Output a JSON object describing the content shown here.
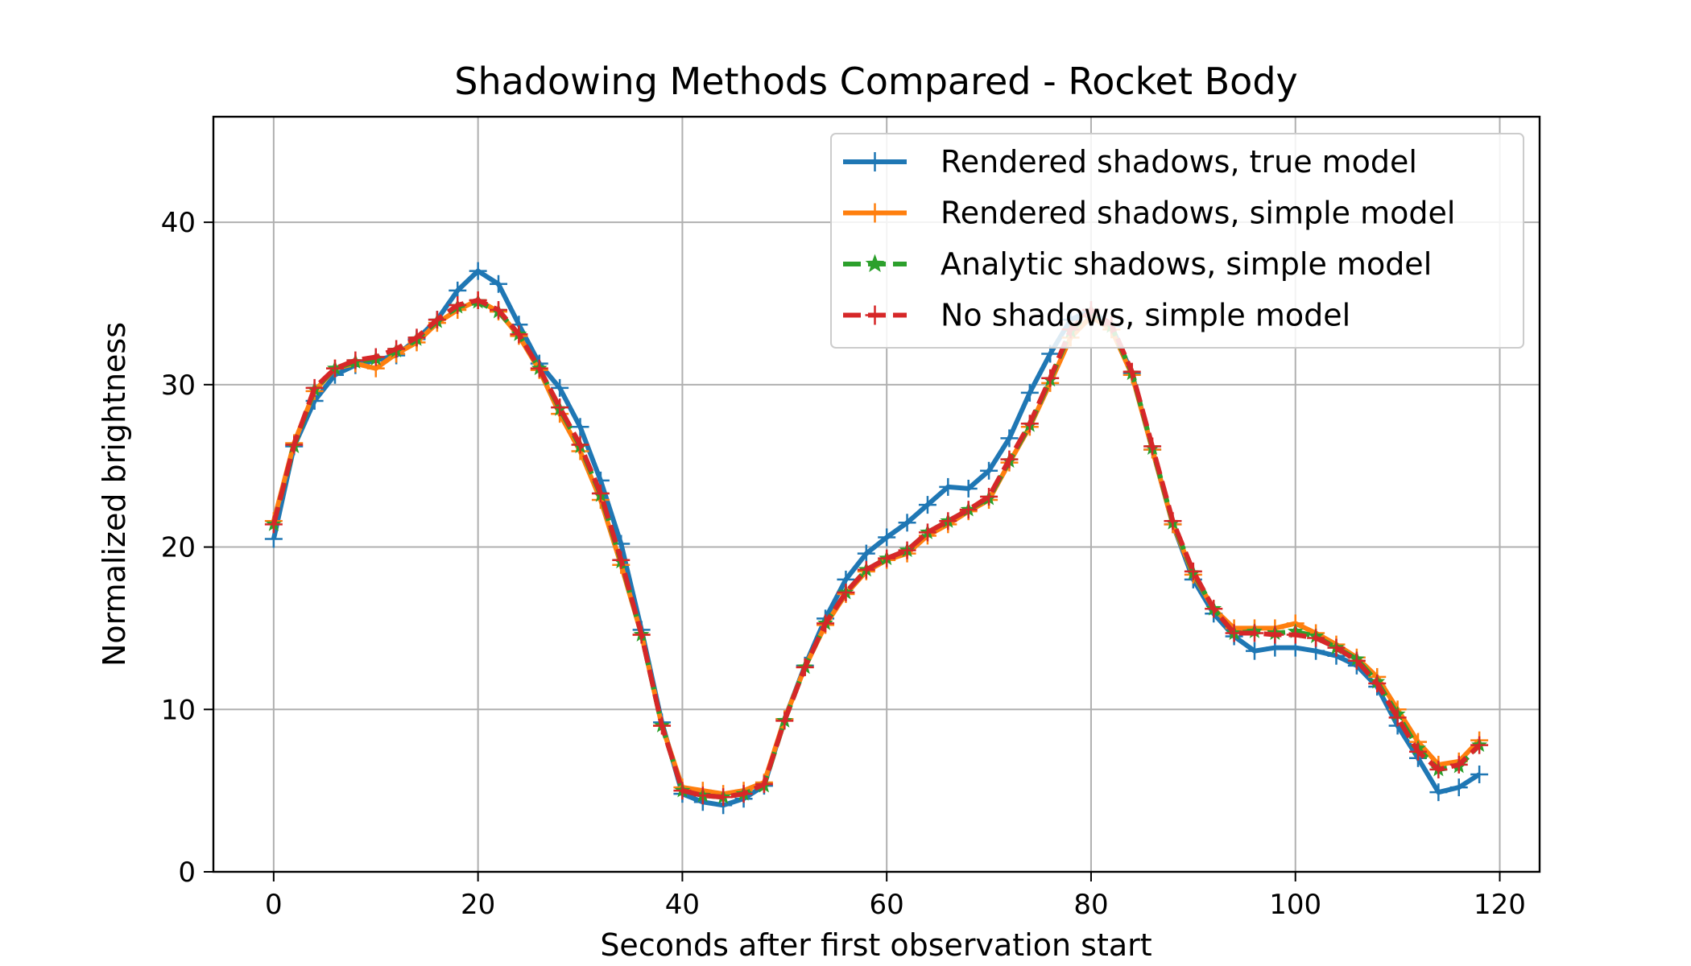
{
  "chart_data": {
    "type": "line",
    "title": "Shadowing Methods Compared - Rocket Body",
    "xlabel": "Seconds after first observation start",
    "ylabel": "Normalized brightness",
    "xlim": [
      -5.9,
      123.9
    ],
    "ylim": [
      0,
      46.5
    ],
    "xticks": [
      0,
      20,
      40,
      60,
      80,
      100,
      120
    ],
    "yticks": [
      0,
      10,
      20,
      30,
      40
    ],
    "grid": true,
    "legend_position": "upper right",
    "x": [
      0,
      2,
      4,
      6,
      8,
      10,
      12,
      14,
      16,
      18,
      20,
      22,
      24,
      26,
      28,
      30,
      32,
      34,
      36,
      38,
      40,
      42,
      44,
      46,
      48,
      50,
      52,
      54,
      56,
      58,
      60,
      62,
      64,
      66,
      68,
      70,
      72,
      74,
      76,
      78,
      80,
      82,
      84,
      86,
      88,
      90,
      92,
      94,
      96,
      98,
      100,
      102,
      104,
      106,
      108,
      110,
      112,
      114,
      116,
      118
    ],
    "series": [
      {
        "name": "Rendered shadows, true model",
        "color": "#1f77b4",
        "linestyle": "solid",
        "marker": "plus",
        "values": [
          20.5,
          26.2,
          29.0,
          30.6,
          31.2,
          31.5,
          31.8,
          32.8,
          34.0,
          35.8,
          37.0,
          36.2,
          33.7,
          31.3,
          29.8,
          27.4,
          24.1,
          20.2,
          14.9,
          9.2,
          4.8,
          4.3,
          4.1,
          4.5,
          5.3,
          9.4,
          12.7,
          15.6,
          18.0,
          19.6,
          20.6,
          21.5,
          22.6,
          23.7,
          23.6,
          24.7,
          26.7,
          29.5,
          31.9,
          34.0,
          34.6,
          33.6,
          30.7,
          26.0,
          21.4,
          18.0,
          15.9,
          14.5,
          13.6,
          13.8,
          13.8,
          13.6,
          13.3,
          12.7,
          11.4,
          9.0,
          7.0,
          4.9,
          5.2,
          6.0
        ]
      },
      {
        "name": "Rendered shadows, simple model",
        "color": "#ff7f0e",
        "linestyle": "solid",
        "marker": "plus",
        "values": [
          21.6,
          26.4,
          29.6,
          31.0,
          31.3,
          31.0,
          31.9,
          32.6,
          33.8,
          34.6,
          35.2,
          34.5,
          33.0,
          30.9,
          28.2,
          25.9,
          22.9,
          18.9,
          14.6,
          9.0,
          5.2,
          5.0,
          4.8,
          5.0,
          5.5,
          9.4,
          12.6,
          15.2,
          17.1,
          18.5,
          19.2,
          19.6,
          20.7,
          21.4,
          22.2,
          22.9,
          25.2,
          27.4,
          30.1,
          32.9,
          34.2,
          33.4,
          30.6,
          26.0,
          21.4,
          18.3,
          16.2,
          15.0,
          15.0,
          15.0,
          15.3,
          14.7,
          14.0,
          13.2,
          12.0,
          10.0,
          8.0,
          6.6,
          6.8,
          8.1
        ]
      },
      {
        "name": "Analytic shadows, simple model",
        "color": "#2ca02c",
        "linestyle": "dashed",
        "marker": "star",
        "values": [
          21.4,
          26.2,
          29.7,
          31.0,
          31.4,
          31.6,
          32.1,
          32.8,
          33.9,
          34.8,
          35.1,
          34.5,
          33.1,
          31.0,
          28.5,
          26.2,
          23.2,
          19.1,
          14.6,
          9.0,
          5.0,
          4.7,
          4.6,
          4.8,
          5.3,
          9.3,
          12.6,
          15.3,
          17.2,
          18.6,
          19.3,
          19.8,
          20.9,
          21.6,
          22.3,
          23.0,
          25.3,
          27.5,
          30.3,
          33.3,
          34.5,
          33.6,
          30.7,
          26.1,
          21.5,
          18.4,
          16.2,
          14.7,
          14.8,
          14.7,
          14.8,
          14.5,
          13.8,
          13.1,
          11.7,
          9.7,
          7.6,
          6.3,
          6.5,
          7.8
        ]
      },
      {
        "name": "No shadows, simple model",
        "color": "#d62728",
        "linestyle": "dashed",
        "marker": "plus",
        "values": [
          21.4,
          26.3,
          29.8,
          31.0,
          31.5,
          31.7,
          32.2,
          32.9,
          34.0,
          34.9,
          35.2,
          34.6,
          33.1,
          31.0,
          28.6,
          26.3,
          23.3,
          19.2,
          14.6,
          9.0,
          5.0,
          4.7,
          4.6,
          4.8,
          5.4,
          9.3,
          12.6,
          15.3,
          17.2,
          18.6,
          19.3,
          19.8,
          20.9,
          21.6,
          22.3,
          23.1,
          25.4,
          27.6,
          30.4,
          33.4,
          34.6,
          33.7,
          30.8,
          26.2,
          21.6,
          18.5,
          16.2,
          14.7,
          14.7,
          14.6,
          14.6,
          14.4,
          13.8,
          13.0,
          11.6,
          9.5,
          7.4,
          6.3,
          6.6,
          7.8
        ]
      }
    ]
  }
}
